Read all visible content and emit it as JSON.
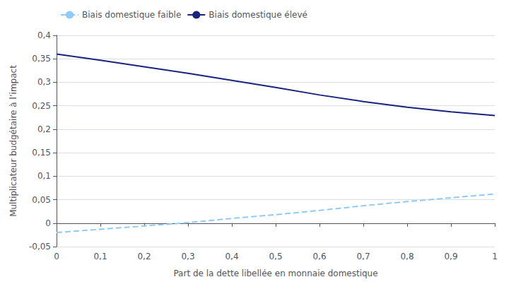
{
  "chart_data": {
    "type": "line",
    "xlabel": "Part de la dette libellée en monnaie domestique",
    "ylabel": "Multiplicateur budgétaire à l’impact",
    "x": [
      0.0,
      0.1,
      0.2,
      0.3,
      0.4,
      0.5,
      0.6,
      0.7,
      0.8,
      0.9,
      1.0
    ],
    "series": [
      {
        "name": "Biais domestique faible",
        "color": "#90caf9",
        "line_style": "dashed",
        "values": [
          -0.02,
          -0.013,
          -0.006,
          0.001,
          0.01,
          0.018,
          0.027,
          0.037,
          0.046,
          0.054,
          0.062
        ]
      },
      {
        "name": "Biais domestique élevé",
        "color": "#1a237e",
        "line_style": "solid",
        "values": [
          0.36,
          0.347,
          0.333,
          0.319,
          0.304,
          0.289,
          0.273,
          0.259,
          0.247,
          0.237,
          0.229
        ]
      }
    ],
    "xlim": [
      0,
      1.0
    ],
    "ylim": [
      -0.05,
      0.4
    ],
    "xticks": [
      0,
      {
        "value": 0.1,
        "label": "0,1"
      },
      {
        "value": 0.2,
        "label": "0,2"
      },
      {
        "value": 0.3,
        "label": "0,3"
      },
      {
        "value": 0.4,
        "label": "0,4"
      },
      {
        "value": 0.5,
        "label": "0,5"
      },
      {
        "value": 0.6,
        "label": "0,6"
      },
      {
        "value": 0.7,
        "label": "0,7"
      },
      {
        "value": 0.8,
        "label": "0,8"
      },
      {
        "value": 0.9,
        "label": "0,9"
      },
      1
    ],
    "yticks": [
      {
        "value": -0.05,
        "label": "-0,05"
      },
      0,
      {
        "value": 0.05,
        "label": "0,05"
      },
      {
        "value": 0.1,
        "label": "0,1"
      },
      {
        "value": 0.15,
        "label": "0,15"
      },
      {
        "value": 0.2,
        "label": "0,2"
      },
      {
        "value": 0.25,
        "label": "0,25"
      },
      {
        "value": 0.3,
        "label": "0,3"
      },
      {
        "value": 0.35,
        "label": "0,35"
      },
      {
        "value": 0.4,
        "label": "0,4"
      }
    ],
    "grid": true,
    "legend": "upper left"
  }
}
